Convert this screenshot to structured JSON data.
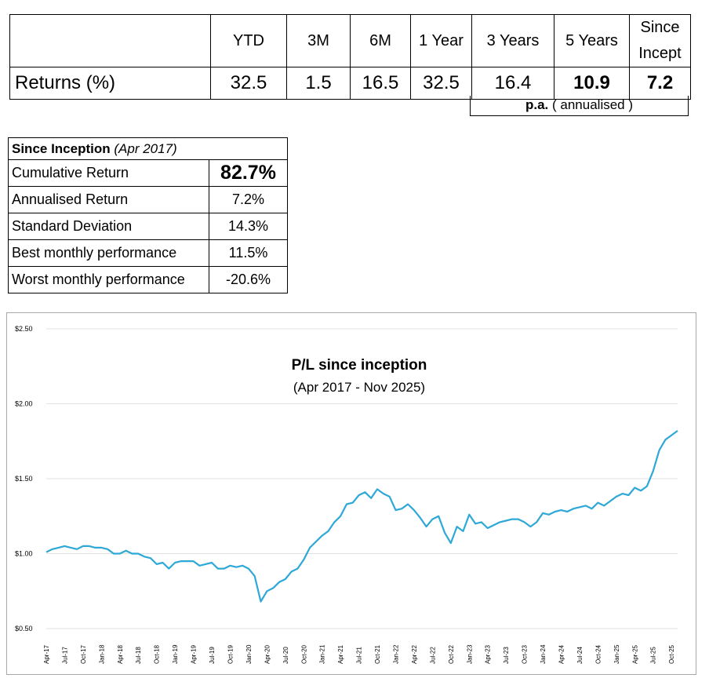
{
  "returns_table": {
    "headers": [
      "YTD",
      "3M",
      "6M",
      "1 Year",
      "3 Years",
      "5 Years",
      "Since Incept"
    ],
    "row_label": "Returns (%)",
    "values": [
      "32.5",
      "1.5",
      "16.5",
      "32.5",
      "16.4",
      "10.9",
      "7.2"
    ],
    "pa_bold": "p.a.",
    "pa_rest": " ( annualised )"
  },
  "inception_table": {
    "title_bold": "Since Inception",
    "title_italic": " (Apr 2017)",
    "rows": [
      {
        "label": "Cumulative Return",
        "value": "82.7%"
      },
      {
        "label": "Annualised Return",
        "value": "7.2%"
      },
      {
        "label": "Standard Deviation",
        "value": "14.3%"
      },
      {
        "label": "Best monthly performance",
        "value": "11.5%"
      },
      {
        "label": "Worst monthly performance",
        "value": "-20.6%"
      }
    ]
  },
  "chart_data": {
    "type": "line",
    "title": "P/L since inception",
    "subtitle": "(Apr 2017 - Nov 2025)",
    "line_color": "#2ea8d6",
    "grid": true,
    "ylim": [
      0.5,
      2.5
    ],
    "y_ticks": [
      {
        "value": 0.5,
        "label": "$0.50"
      },
      {
        "value": 1.0,
        "label": "$1.00"
      },
      {
        "value": 1.5,
        "label": "$1.50"
      },
      {
        "value": 2.0,
        "label": "$2.00"
      },
      {
        "value": 2.5,
        "label": "$2.50"
      }
    ],
    "x_tick_labels": [
      "Apr-17",
      "Jul-17",
      "Oct-17",
      "Jan-18",
      "Apr-18",
      "Jul-18",
      "Oct-18",
      "Jan-19",
      "Apr-19",
      "Jul-19",
      "Oct-19",
      "Jan-20",
      "Apr-20",
      "Jul-20",
      "Oct-20",
      "Jan-21",
      "Apr-21",
      "Jul-21",
      "Oct-21",
      "Jan-22",
      "Apr-22",
      "Jul-22",
      "Oct-22",
      "Jan-23",
      "Apr-23",
      "Jul-23",
      "Oct-23",
      "Jan-24",
      "Apr-24",
      "Jul-24",
      "Oct-24",
      "Jan-25",
      "Apr-25",
      "Jul-25",
      "Oct-25"
    ],
    "series": [
      {
        "values": [
          1.01,
          1.03,
          1.04,
          1.05,
          1.04,
          1.03,
          1.05,
          1.05,
          1.04,
          1.04,
          1.03,
          1.0,
          1.0,
          1.02,
          1.0,
          1.0,
          0.98,
          0.97,
          0.93,
          0.94,
          0.9,
          0.94,
          0.95,
          0.95,
          0.95,
          0.92,
          0.93,
          0.94,
          0.9,
          0.9,
          0.92,
          0.91,
          0.92,
          0.9,
          0.85,
          0.68,
          0.75,
          0.77,
          0.81,
          0.83,
          0.88,
          0.9,
          0.96,
          1.04,
          1.08,
          1.12,
          1.15,
          1.21,
          1.25,
          1.33,
          1.34,
          1.39,
          1.41,
          1.37,
          1.43,
          1.4,
          1.38,
          1.29,
          1.3,
          1.33,
          1.29,
          1.24,
          1.18,
          1.23,
          1.25,
          1.14,
          1.07,
          1.18,
          1.15,
          1.26,
          1.2,
          1.21,
          1.17,
          1.19,
          1.21,
          1.22,
          1.23,
          1.23,
          1.21,
          1.18,
          1.21,
          1.27,
          1.26,
          1.28,
          1.29,
          1.28,
          1.3,
          1.31,
          1.32,
          1.3,
          1.34,
          1.32,
          1.35,
          1.38,
          1.4,
          1.39,
          1.44,
          1.42,
          1.45,
          1.55,
          1.69,
          1.76,
          1.79,
          1.82
        ]
      }
    ]
  }
}
